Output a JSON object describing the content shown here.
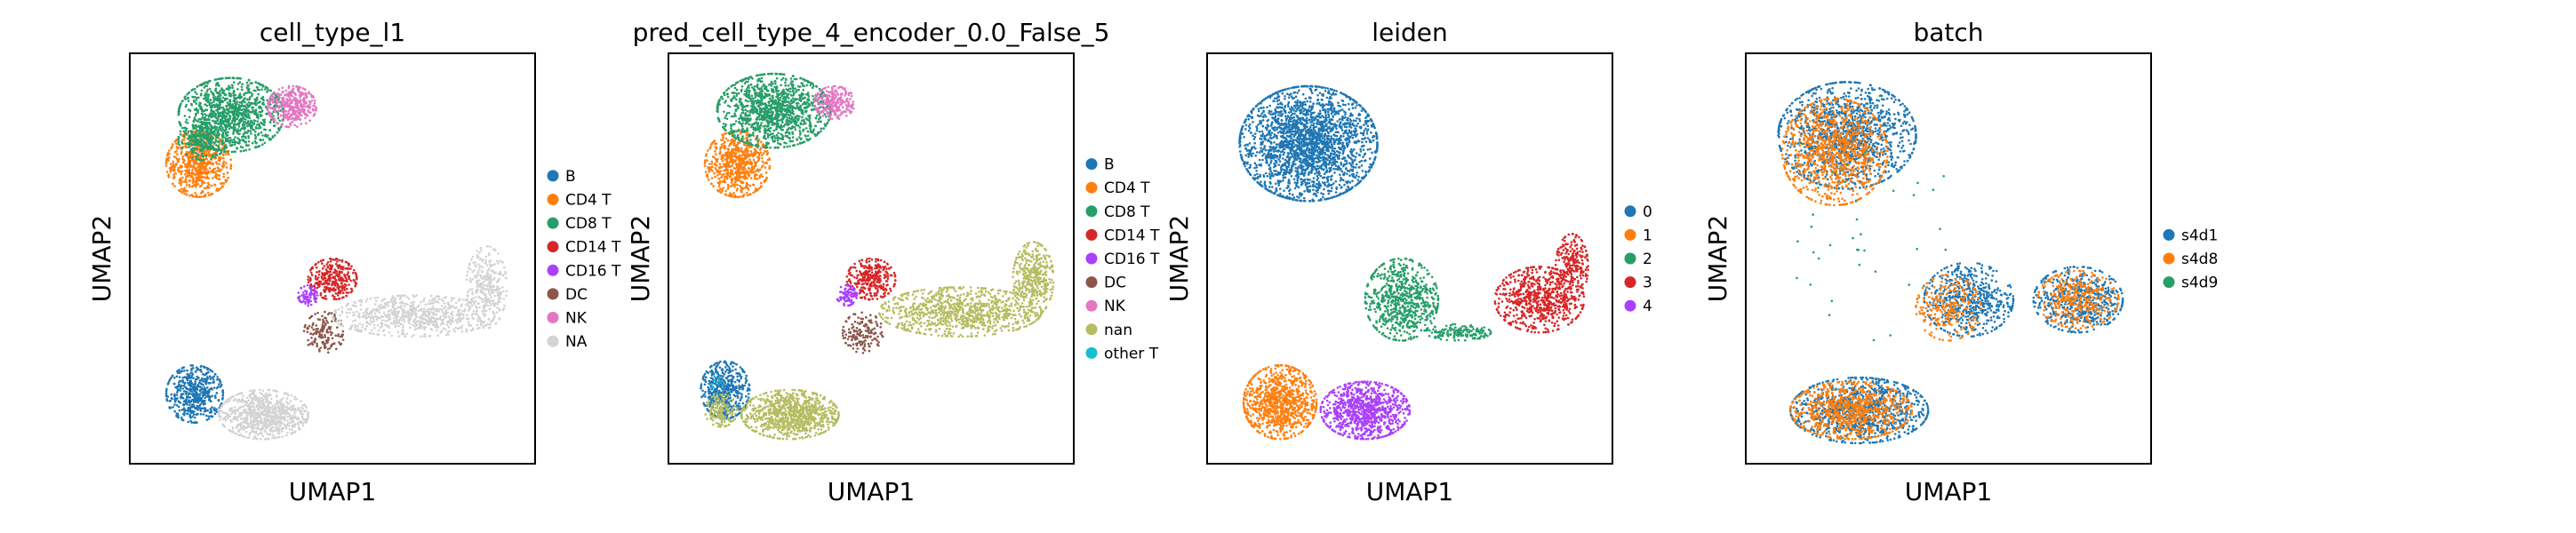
{
  "figure": {
    "panels": [
      {
        "title": "cell_type_l1",
        "xlabel": "UMAP1",
        "ylabel": "UMAP2",
        "legend": [
          {
            "label": "B",
            "color": "#1f77b4"
          },
          {
            "label": "CD4 T",
            "color": "#ff7f0e"
          },
          {
            "label": "CD8 T",
            "color": "#279e68"
          },
          {
            "label": "CD14 T",
            "color": "#d62728"
          },
          {
            "label": "CD16 T",
            "color": "#aa40fc"
          },
          {
            "label": "DC",
            "color": "#8c564b"
          },
          {
            "label": "NK",
            "color": "#e377c2"
          },
          {
            "label": "NA",
            "color": "#d3d3d3"
          }
        ]
      },
      {
        "title": "pred_cell_type_4_encoder_0.0_False_5",
        "xlabel": "UMAP1",
        "ylabel": "UMAP2",
        "legend": [
          {
            "label": "B",
            "color": "#1f77b4"
          },
          {
            "label": "CD4 T",
            "color": "#ff7f0e"
          },
          {
            "label": "CD8 T",
            "color": "#279e68"
          },
          {
            "label": "CD14 T",
            "color": "#d62728"
          },
          {
            "label": "CD16 T",
            "color": "#aa40fc"
          },
          {
            "label": "DC",
            "color": "#8c564b"
          },
          {
            "label": "NK",
            "color": "#e377c2"
          },
          {
            "label": "nan",
            "color": "#b5bd61"
          },
          {
            "label": "other T",
            "color": "#17becf"
          }
        ]
      },
      {
        "title": "leiden",
        "xlabel": "UMAP1",
        "ylabel": "UMAP2",
        "legend": [
          {
            "label": "0",
            "color": "#1f77b4"
          },
          {
            "label": "1",
            "color": "#ff7f0e"
          },
          {
            "label": "2",
            "color": "#279e68"
          },
          {
            "label": "3",
            "color": "#d62728"
          },
          {
            "label": "4",
            "color": "#aa40fc"
          }
        ]
      },
      {
        "title": "batch",
        "xlabel": "UMAP1",
        "ylabel": "UMAP2",
        "legend": [
          {
            "label": "s4d1",
            "color": "#1f77b4"
          },
          {
            "label": "s4d8",
            "color": "#ff7f0e"
          },
          {
            "label": "s4d9",
            "color": "#279e68"
          }
        ]
      }
    ]
  },
  "chart_data": [
    {
      "type": "scatter",
      "title": "cell_type_l1",
      "xlabel": "UMAP1",
      "ylabel": "UMAP2",
      "grid": false,
      "ticks": false,
      "legend_position": "right",
      "series": [
        {
          "name": "B",
          "color": "#1f77b4",
          "clusters": [
            {
              "cx": 0.16,
              "cy": 0.17,
              "rx": 0.07,
              "ry": 0.07,
              "n": 520
            }
          ]
        },
        {
          "name": "CD4 T",
          "color": "#ff7f0e",
          "clusters": [
            {
              "cx": 0.17,
              "cy": 0.73,
              "rx": 0.08,
              "ry": 0.08,
              "n": 650
            }
          ]
        },
        {
          "name": "CD8 T",
          "color": "#279e68",
          "clusters": [
            {
              "cx": 0.25,
              "cy": 0.85,
              "rx": 0.13,
              "ry": 0.09,
              "n": 1100
            },
            {
              "cx": 0.18,
              "cy": 0.79,
              "rx": 0.06,
              "ry": 0.05,
              "n": 250
            }
          ]
        },
        {
          "name": "CD14 T",
          "color": "#d62728",
          "clusters": [
            {
              "cx": 0.5,
              "cy": 0.45,
              "rx": 0.06,
              "ry": 0.05,
              "n": 300
            }
          ]
        },
        {
          "name": "CD16 T",
          "color": "#aa40fc",
          "clusters": [
            {
              "cx": 0.44,
              "cy": 0.41,
              "rx": 0.025,
              "ry": 0.025,
              "n": 80
            }
          ]
        },
        {
          "name": "DC",
          "color": "#8c564b",
          "clusters": [
            {
              "cx": 0.48,
              "cy": 0.32,
              "rx": 0.05,
              "ry": 0.05,
              "n": 150
            }
          ]
        },
        {
          "name": "NK",
          "color": "#e377c2",
          "clusters": [
            {
              "cx": 0.4,
              "cy": 0.87,
              "rx": 0.06,
              "ry": 0.05,
              "n": 380
            }
          ]
        },
        {
          "name": "NA",
          "color": "#d3d3d3",
          "clusters": [
            {
              "cx": 0.33,
              "cy": 0.12,
              "rx": 0.11,
              "ry": 0.06,
              "n": 800
            },
            {
              "cx": 0.7,
              "cy": 0.36,
              "rx": 0.2,
              "ry": 0.05,
              "n": 700
            },
            {
              "cx": 0.88,
              "cy": 0.43,
              "rx": 0.05,
              "ry": 0.1,
              "n": 300
            }
          ]
        }
      ]
    },
    {
      "type": "scatter",
      "title": "pred_cell_type_4_encoder_0.0_False_5",
      "xlabel": "UMAP1",
      "ylabel": "UMAP2",
      "grid": false,
      "ticks": false,
      "legend_position": "right",
      "series": [
        {
          "name": "B",
          "color": "#1f77b4",
          "clusters": [
            {
              "cx": 0.14,
              "cy": 0.18,
              "rx": 0.06,
              "ry": 0.07,
              "n": 450
            }
          ]
        },
        {
          "name": "CD4 T",
          "color": "#ff7f0e",
          "clusters": [
            {
              "cx": 0.17,
              "cy": 0.73,
              "rx": 0.08,
              "ry": 0.08,
              "n": 650
            }
          ]
        },
        {
          "name": "CD8 T",
          "color": "#279e68",
          "clusters": [
            {
              "cx": 0.26,
              "cy": 0.86,
              "rx": 0.14,
              "ry": 0.09,
              "n": 1250
            }
          ]
        },
        {
          "name": "CD14 T",
          "color": "#d62728",
          "clusters": [
            {
              "cx": 0.5,
              "cy": 0.45,
              "rx": 0.06,
              "ry": 0.05,
              "n": 300
            }
          ]
        },
        {
          "name": "CD16 T",
          "color": "#aa40fc",
          "clusters": [
            {
              "cx": 0.44,
              "cy": 0.41,
              "rx": 0.025,
              "ry": 0.025,
              "n": 80
            }
          ]
        },
        {
          "name": "DC",
          "color": "#8c564b",
          "clusters": [
            {
              "cx": 0.48,
              "cy": 0.32,
              "rx": 0.05,
              "ry": 0.05,
              "n": 150
            }
          ]
        },
        {
          "name": "NK",
          "color": "#e377c2",
          "clusters": [
            {
              "cx": 0.41,
              "cy": 0.88,
              "rx": 0.05,
              "ry": 0.04,
              "n": 250
            }
          ]
        },
        {
          "name": "nan",
          "color": "#b5bd61",
          "clusters": [
            {
              "cx": 0.3,
              "cy": 0.12,
              "rx": 0.12,
              "ry": 0.06,
              "n": 900
            },
            {
              "cx": 0.72,
              "cy": 0.37,
              "rx": 0.2,
              "ry": 0.06,
              "n": 900
            },
            {
              "cx": 0.9,
              "cy": 0.45,
              "rx": 0.05,
              "ry": 0.09,
              "n": 400
            },
            {
              "cx": 0.13,
              "cy": 0.13,
              "rx": 0.04,
              "ry": 0.04,
              "n": 150
            }
          ]
        },
        {
          "name": "other T",
          "color": "#17becf",
          "clusters": [
            {
              "cx": 0.12,
              "cy": 0.2,
              "rx": 0.02,
              "ry": 0.02,
              "n": 10
            }
          ]
        }
      ]
    },
    {
      "type": "scatter",
      "title": "leiden",
      "xlabel": "UMAP1",
      "ylabel": "UMAP2",
      "grid": false,
      "ticks": false,
      "legend_position": "right",
      "series": [
        {
          "name": "0",
          "color": "#1f77b4",
          "clusters": [
            {
              "cx": 0.25,
              "cy": 0.78,
              "rx": 0.17,
              "ry": 0.14,
              "n": 2400
            }
          ]
        },
        {
          "name": "1",
          "color": "#ff7f0e",
          "clusters": [
            {
              "cx": 0.18,
              "cy": 0.15,
              "rx": 0.09,
              "ry": 0.09,
              "n": 900
            }
          ]
        },
        {
          "name": "2",
          "color": "#279e68",
          "clusters": [
            {
              "cx": 0.48,
              "cy": 0.4,
              "rx": 0.09,
              "ry": 0.1,
              "n": 700
            },
            {
              "cx": 0.62,
              "cy": 0.32,
              "rx": 0.08,
              "ry": 0.02,
              "n": 150
            }
          ]
        },
        {
          "name": "3",
          "color": "#d62728",
          "clusters": [
            {
              "cx": 0.82,
              "cy": 0.4,
              "rx": 0.11,
              "ry": 0.08,
              "n": 700
            },
            {
              "cx": 0.9,
              "cy": 0.48,
              "rx": 0.04,
              "ry": 0.08,
              "n": 250
            }
          ]
        },
        {
          "name": "4",
          "color": "#aa40fc",
          "clusters": [
            {
              "cx": 0.39,
              "cy": 0.13,
              "rx": 0.11,
              "ry": 0.07,
              "n": 900
            }
          ]
        }
      ]
    },
    {
      "type": "scatter",
      "title": "batch",
      "xlabel": "UMAP1",
      "ylabel": "UMAP2",
      "grid": false,
      "ticks": false,
      "legend_position": "right",
      "series": [
        {
          "name": "s4d1",
          "color": "#1f77b4",
          "clusters": [
            {
              "cx": 0.25,
              "cy": 0.8,
              "rx": 0.17,
              "ry": 0.13,
              "n": 1300
            },
            {
              "cx": 0.28,
              "cy": 0.13,
              "rx": 0.17,
              "ry": 0.08,
              "n": 1000
            },
            {
              "cx": 0.55,
              "cy": 0.4,
              "rx": 0.11,
              "ry": 0.09,
              "n": 550
            },
            {
              "cx": 0.82,
              "cy": 0.4,
              "rx": 0.11,
              "ry": 0.08,
              "n": 550
            }
          ]
        },
        {
          "name": "s4d8",
          "color": "#ff7f0e",
          "clusters": [
            {
              "cx": 0.22,
              "cy": 0.76,
              "rx": 0.13,
              "ry": 0.13,
              "n": 1000
            },
            {
              "cx": 0.26,
              "cy": 0.13,
              "rx": 0.15,
              "ry": 0.07,
              "n": 800
            },
            {
              "cx": 0.5,
              "cy": 0.38,
              "rx": 0.08,
              "ry": 0.08,
              "n": 250
            },
            {
              "cx": 0.82,
              "cy": 0.4,
              "rx": 0.1,
              "ry": 0.07,
              "n": 350
            }
          ]
        },
        {
          "name": "s4d9",
          "color": "#279e68",
          "clusters": [
            {
              "cx": 0.3,
              "cy": 0.6,
              "rx": 0.2,
              "ry": 0.3,
              "n": 40
            }
          ]
        }
      ]
    }
  ]
}
